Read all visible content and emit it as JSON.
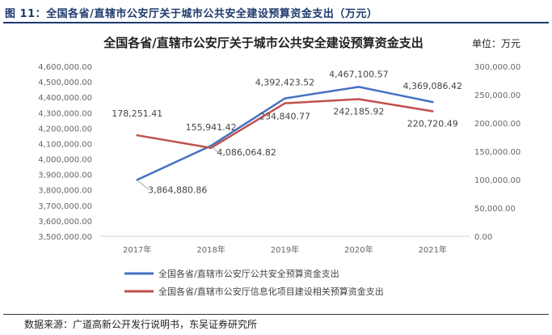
{
  "figure": {
    "title": "图 11：全国各省/直辖市公安厅关于城市公共安全建设预算资金支出（万元）",
    "source": "数据来源：广道高新公开发行说明书，东吴证券研究所"
  },
  "colors": {
    "series1": "#4472c4",
    "series2": "#c0504d",
    "heading": "#1f3b6e"
  },
  "chart_data": {
    "type": "line",
    "title": "全国各省/直辖市公安厅关于城市公共安全建设预算资金支出",
    "unit_label": "单位：万元",
    "categories": [
      "2017年",
      "2018年",
      "2019年",
      "2020年",
      "2021年"
    ],
    "y_left": {
      "min": 3500000,
      "max": 4600000,
      "step": 100000,
      "ticks": [
        "3,500,000.00",
        "3,600,000.00",
        "3,700,000.00",
        "3,800,000.00",
        "3,900,000.00",
        "4,000,000.00",
        "4,100,000.00",
        "4,200,000.00",
        "4,300,000.00",
        "4,400,000.00",
        "4,500,000.00",
        "4,600,000.00"
      ]
    },
    "y_right": {
      "min": 0,
      "max": 300000,
      "step": 50000,
      "ticks": [
        "0.00",
        "50,000.00",
        "100,000.00",
        "150,000.00",
        "200,000.00",
        "250,000.00",
        "300,000.00"
      ]
    },
    "series": [
      {
        "name": "全国各省/直辖市公安厅公共安全预算资金支出",
        "axis": "left",
        "values": [
          3864880.86,
          4086064.82,
          4392423.52,
          4467100.57,
          4369086.42
        ],
        "labels": [
          "3,864,880.86",
          "4,086,064.82",
          "4,392,423.52",
          "4,467,100.57",
          "4,369,086.42"
        ]
      },
      {
        "name": "全国各省/直辖市公安厅信息化项目建设相关预算资金支出",
        "axis": "right",
        "values": [
          178251.41,
          155941.42,
          234840.77,
          242185.92,
          220720.49
        ],
        "labels": [
          "178,251.41",
          "155,941.42",
          "234,840.77",
          "242,185.92",
          "220,720.49"
        ]
      }
    ],
    "grid": false,
    "legend_position": "bottom"
  }
}
